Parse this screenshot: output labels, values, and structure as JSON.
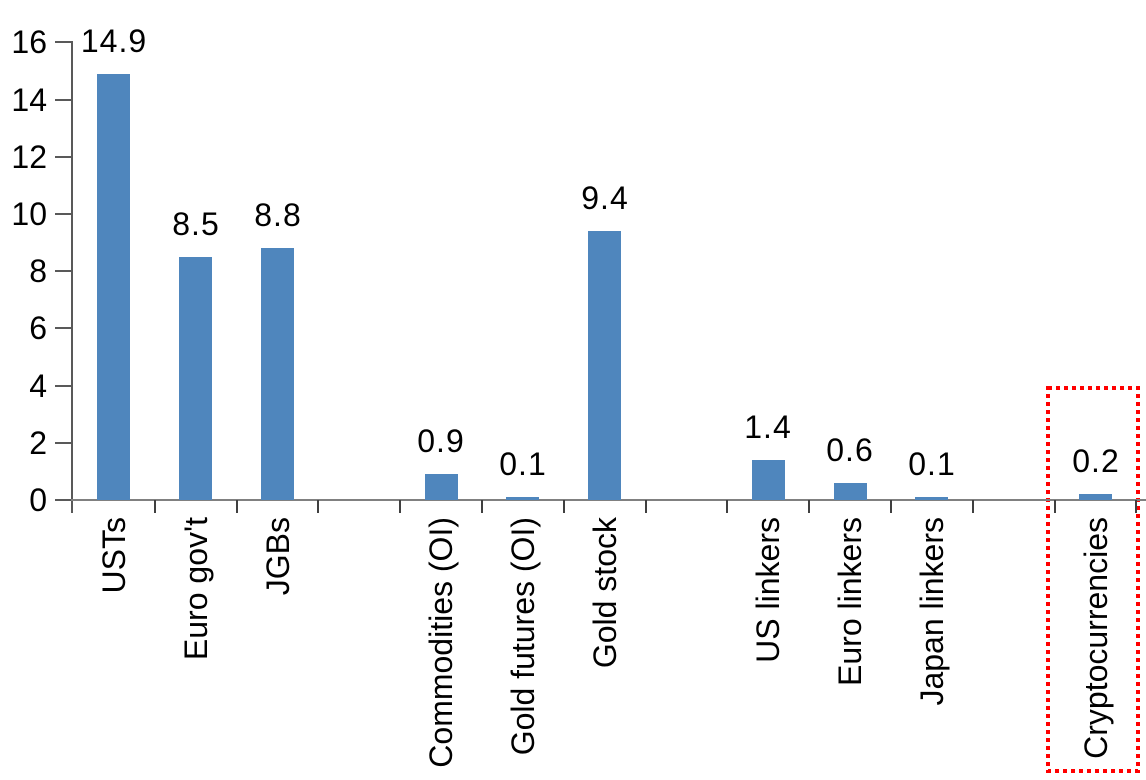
{
  "chart_data": {
    "type": "bar",
    "title": "",
    "xlabel": "",
    "ylabel": "",
    "categories": [
      "USTs",
      "Euro gov't",
      "JGBs",
      "",
      "Commodities (OI)",
      "Gold futures (OI)",
      "Gold stock",
      "",
      "US linkers",
      "Euro linkers",
      "Japan linkers",
      "",
      "Cryptocurrencies"
    ],
    "values": [
      14.9,
      8.5,
      8.8,
      null,
      0.9,
      0.1,
      9.4,
      null,
      1.4,
      0.6,
      0.1,
      null,
      0.2
    ],
    "data_labels": [
      "14.9",
      "8.5",
      "8.8",
      null,
      "0.9",
      "0.1",
      "9.4",
      null,
      "1.4",
      "0.6",
      "0.1",
      null,
      "0.2"
    ],
    "ylim": [
      0,
      16
    ],
    "yticks": [
      0,
      2,
      4,
      6,
      8,
      10,
      12,
      14,
      16
    ],
    "grid": false,
    "legend": null,
    "bar_color": "#4F86BD",
    "x_axis_color": "#808080",
    "y_axis_color": "#595959",
    "tick_color": "#404040",
    "text_color": "#000000",
    "highlight": {
      "category_index": 12,
      "category": "Cryptocurrencies",
      "style": "dotted-box",
      "color": "#FF0000"
    }
  }
}
